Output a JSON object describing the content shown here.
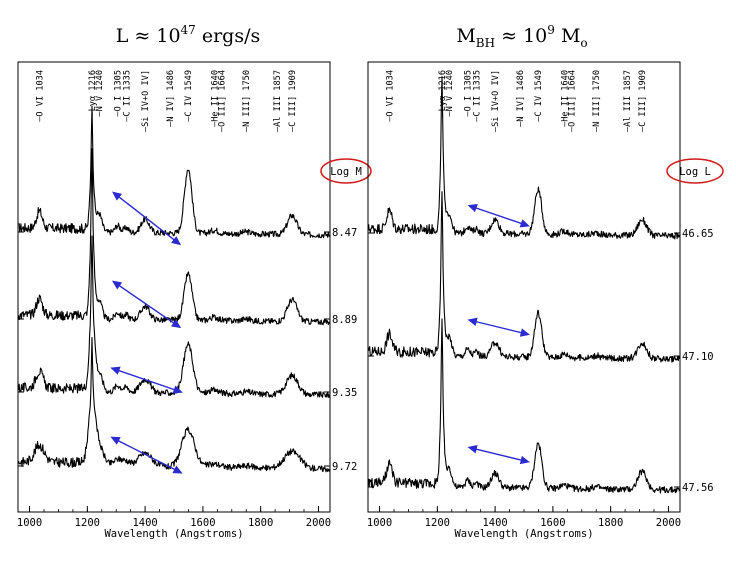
{
  "chart_data": [
    {
      "type": "line",
      "title_main": "L ≈ 10",
      "title_exp": "47",
      "title_rest": " ergs/s",
      "xlabel": "Wavelength (Angstroms)",
      "xlim": [
        960,
        2040
      ],
      "xticks": [
        1000,
        1200,
        1400,
        1600,
        1800,
        2000
      ],
      "param_label": "Log M",
      "lines": [
        {
          "label": "O VI 1034",
          "wave": 1034
        },
        {
          "label": "Lyα 1216",
          "wave": 1216
        },
        {
          "label": "N V 1240",
          "wave": 1240
        },
        {
          "label": "O I 1305",
          "wave": 1305
        },
        {
          "label": "C II 1335",
          "wave": 1335
        },
        {
          "label": "Si IV+O IV]",
          "wave": 1400
        },
        {
          "label": "N IV] 1486",
          "wave": 1486
        },
        {
          "label": "C IV 1549",
          "wave": 1549
        },
        {
          "label": "He II 1640",
          "wave": 1640
        },
        {
          "label": "O III] 1664",
          "wave": 1664
        },
        {
          "label": "N III] 1750",
          "wave": 1750
        },
        {
          "label": "Al III 1857",
          "wave": 1857
        },
        {
          "label": "C III] 1909",
          "wave": 1909
        }
      ],
      "series": [
        {
          "name": "8.47",
          "lya": 0.95,
          "civ": 0.95,
          "ciii": 0.28,
          "width": 1.0,
          "arrow": {
            "start_wave": 1290,
            "start_dy": -0.58,
            "end_wave": 1520,
            "end_dy": 0.18
          }
        },
        {
          "name": "8.89",
          "lya": 1.3,
          "civ": 0.68,
          "ciii": 0.32,
          "width": 1.05,
          "arrow": {
            "start_wave": 1290,
            "start_dy": -0.55,
            "end_wave": 1520,
            "end_dy": 0.12
          }
        },
        {
          "name": "9.35",
          "lya": 1.2,
          "civ": 0.72,
          "ciii": 0.28,
          "width": 1.25,
          "arrow": {
            "start_wave": 1285,
            "start_dy": -0.35,
            "end_wave": 1525,
            "end_dy": 0.0
          }
        },
        {
          "name": "9.72",
          "lya": 0.92,
          "civ": 0.55,
          "ciii": 0.25,
          "width": 1.7,
          "arrow": {
            "start_wave": 1285,
            "start_dy": -0.42,
            "end_wave": 1525,
            "end_dy": 0.1
          }
        }
      ]
    },
    {
      "type": "line",
      "title_main": "M",
      "title_sub": "BH",
      "title_rest": " ≈ 10",
      "title_exp": "9",
      "title_tail": " M",
      "title_sub2": "o",
      "xlabel": "Wavelength (Angstroms)",
      "xlim": [
        960,
        2040
      ],
      "xticks": [
        1000,
        1200,
        1400,
        1600,
        1800,
        2000
      ],
      "param_label": "Log L",
      "lines": [
        {
          "label": "O VI 1034",
          "wave": 1034
        },
        {
          "label": "Lyα 1216",
          "wave": 1216
        },
        {
          "label": "N V 1240",
          "wave": 1240
        },
        {
          "label": "O I 1305",
          "wave": 1305
        },
        {
          "label": "C II 1335",
          "wave": 1335
        },
        {
          "label": "Si IV+O IV]",
          "wave": 1400
        },
        {
          "label": "N IV] 1486",
          "wave": 1486
        },
        {
          "label": "C IV 1549",
          "wave": 1549
        },
        {
          "label": "He II 1640",
          "wave": 1640
        },
        {
          "label": "O III] 1664",
          "wave": 1664
        },
        {
          "label": "N III] 1750",
          "wave": 1750
        },
        {
          "label": "Al III 1857",
          "wave": 1857
        },
        {
          "label": "C III] 1909",
          "wave": 1909
        }
      ],
      "series": [
        {
          "name": "46.65",
          "lya": 1.15,
          "civ": 0.62,
          "ciii": 0.22,
          "width": 0.95,
          "arrow": {
            "start_wave": 1310,
            "start_dy": -0.38,
            "end_wave": 1515,
            "end_dy": -0.1
          }
        },
        {
          "name": "47.10",
          "lya": 1.2,
          "civ": 0.62,
          "ciii": 0.22,
          "width": 0.95,
          "arrow": {
            "start_wave": 1310,
            "start_dy": -0.5,
            "end_wave": 1515,
            "end_dy": -0.3
          }
        },
        {
          "name": "47.56",
          "lya": 1.2,
          "civ": 0.62,
          "ciii": 0.25,
          "width": 0.95,
          "arrow": {
            "start_wave": 1310,
            "start_dy": -0.55,
            "end_wave": 1515,
            "end_dy": -0.35
          }
        }
      ]
    }
  ]
}
